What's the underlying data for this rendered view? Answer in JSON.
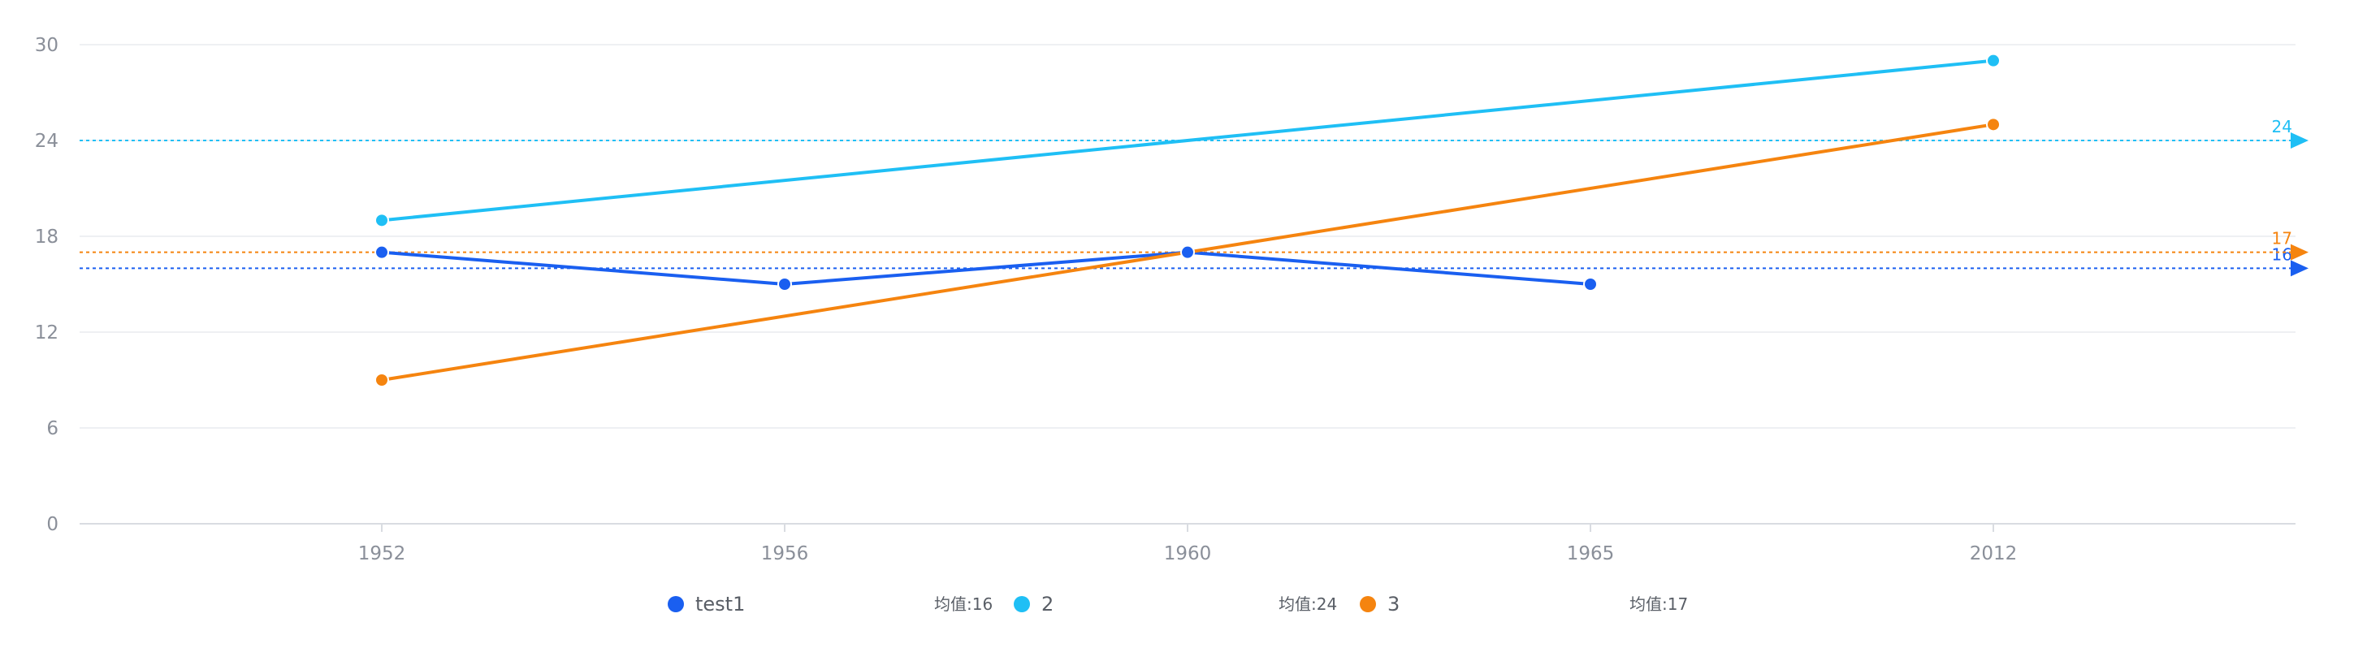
{
  "chart_data": {
    "type": "line",
    "categories": [
      "1952",
      "1956",
      "1960",
      "1965",
      "2012"
    ],
    "yticks": [
      0,
      6,
      12,
      18,
      24,
      30
    ],
    "ylim": [
      0,
      30
    ],
    "grid": true,
    "series": [
      {
        "name": "test1",
        "color": "#1a5ff0",
        "values": [
          17,
          15,
          17,
          15,
          null
        ],
        "mean": 16,
        "mean_label": "16",
        "legend_mean": "均值:16"
      },
      {
        "name": "2",
        "color": "#1fbff5",
        "values": [
          19,
          null,
          null,
          null,
          29
        ],
        "mean": 24,
        "mean_label": "24",
        "legend_mean": "均值:24"
      },
      {
        "name": "3",
        "color": "#f5840f",
        "values": [
          9,
          null,
          null,
          null,
          25
        ],
        "mean": 17,
        "mean_label": "17",
        "legend_mean": "均值:17"
      }
    ],
    "legend_position": "bottom"
  }
}
